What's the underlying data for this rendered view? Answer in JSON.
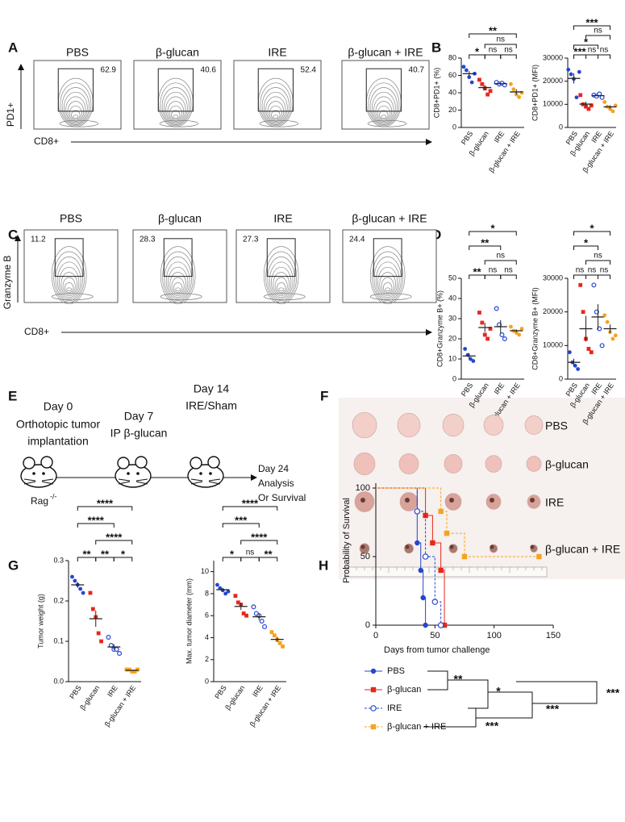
{
  "panel_labels": [
    "A",
    "B",
    "C",
    "D",
    "E",
    "F",
    "G",
    "H"
  ],
  "flow_A": {
    "groups": [
      "PBS",
      "β-glucan",
      "IRE",
      "β-glucan + IRE"
    ],
    "gate_values": [
      62.9,
      40.6,
      52.4,
      40.7
    ],
    "y_label": "PD1+",
    "x_label": "CD8+"
  },
  "flow_C": {
    "groups": [
      "PBS",
      "β-glucan",
      "IRE",
      "β-glucan + IRE"
    ],
    "gate_values": [
      11.2,
      28.3,
      27.3,
      24.4
    ],
    "y_label": "Granzyme B",
    "x_label": "CD8+"
  },
  "dot_B1": {
    "type": "dot",
    "y_label": "CD8+PD1+ (%)",
    "ylim": [
      0,
      80
    ],
    "yticks": [
      0,
      20,
      40,
      60,
      80
    ],
    "groups": [
      {
        "name": "PBS",
        "color": "#2546d0",
        "marker": "circle",
        "values": [
          70,
          66,
          58,
          52,
          62
        ],
        "mean": 62,
        "sem": 3
      },
      {
        "name": "β-glucan",
        "color": "#e8261c",
        "marker": "square",
        "values": [
          55,
          50,
          45,
          38,
          42
        ],
        "mean": 46,
        "sem": 3
      },
      {
        "name": "IRE",
        "color": "#2546d0",
        "marker": "open-circle",
        "values": [
          52,
          50,
          51,
          49
        ],
        "mean": 50.5,
        "sem": 1
      },
      {
        "name": "β-glucan + IRE",
        "color": "#f5a31e",
        "marker": "circle",
        "values": [
          50,
          44,
          38,
          35,
          40
        ],
        "mean": 41,
        "sem": 3
      }
    ],
    "brackets": [
      {
        "from": "PBS",
        "to": "β-glucan + IRE",
        "label": "**"
      },
      {
        "from": "β-glucan",
        "to": "β-glucan + IRE",
        "label": "ns"
      },
      {
        "from": "IRE",
        "to": "β-glucan + IRE",
        "label": "ns"
      },
      {
        "from": "PBS",
        "to": "β-glucan",
        "label": "*"
      },
      {
        "from": "β-glucan",
        "to": "IRE",
        "label": "ns"
      }
    ]
  },
  "dot_B2": {
    "type": "dot",
    "y_label": "CD8+PD1+ (MFI)",
    "ylim": [
      0,
      30000
    ],
    "yticks": [
      0,
      10000,
      20000,
      30000
    ],
    "groups": [
      {
        "name": "PBS",
        "color": "#2546d0",
        "marker": "circle",
        "values": [
          25000,
          23000,
          21000,
          13000,
          24000
        ],
        "mean": 21200,
        "sem": 2200
      },
      {
        "name": "β-glucan",
        "color": "#e8261c",
        "marker": "square",
        "values": [
          14000,
          10000,
          9000,
          8000,
          9500
        ],
        "mean": 10100,
        "sem": 1000
      },
      {
        "name": "IRE",
        "color": "#2546d0",
        "marker": "open-circle",
        "values": [
          14000,
          13500,
          14500,
          13000
        ],
        "mean": 13750,
        "sem": 300
      },
      {
        "name": "β-glucan + IRE",
        "color": "#f5a31e",
        "marker": "circle",
        "values": [
          11000,
          9000,
          8000,
          7000,
          9500
        ],
        "mean": 8900,
        "sem": 700
      }
    ],
    "brackets": [
      {
        "from": "PBS",
        "to": "β-glucan + IRE",
        "label": "***"
      },
      {
        "from": "PBS",
        "to": "IRE",
        "label": "*"
      },
      {
        "from": "β-glucan",
        "to": "IRE",
        "label": "ns"
      },
      {
        "from": "PBS",
        "to": "β-glucan",
        "label": "***"
      },
      {
        "from": "IRE",
        "to": "β-glucan + IRE",
        "label": "ns"
      },
      {
        "from": "β-glucan",
        "to": "β-glucan + IRE",
        "label": "ns"
      }
    ]
  },
  "dot_D1": {
    "type": "dot",
    "y_label": "CD8+Granzyme B+ (%)",
    "ylim": [
      0,
      50
    ],
    "yticks": [
      0,
      10,
      20,
      30,
      40,
      50
    ],
    "groups": [
      {
        "name": "PBS",
        "color": "#2546d0",
        "marker": "circle",
        "values": [
          15,
          12,
          10,
          9
        ],
        "mean": 11.5,
        "sem": 1.3
      },
      {
        "name": "β-glucan",
        "color": "#e8261c",
        "marker": "square",
        "values": [
          33,
          28,
          22,
          20,
          25
        ],
        "mean": 25.6,
        "sem": 2.3
      },
      {
        "name": "IRE",
        "color": "#2546d0",
        "marker": "open-circle",
        "values": [
          35,
          27,
          22,
          20
        ],
        "mean": 26,
        "sem": 3.3
      },
      {
        "name": "β-glucan + IRE",
        "color": "#f5a31e",
        "marker": "circle",
        "values": [
          26,
          24,
          23,
          22,
          25
        ],
        "mean": 24,
        "sem": 0.7
      }
    ],
    "brackets": [
      {
        "from": "PBS",
        "to": "β-glucan + IRE",
        "label": "*"
      },
      {
        "from": "β-glucan",
        "to": "β-glucan + IRE",
        "label": "ns"
      },
      {
        "from": "PBS",
        "to": "IRE",
        "label": "**"
      },
      {
        "from": "β-glucan",
        "to": "IRE",
        "label": "ns"
      },
      {
        "from": "PBS",
        "to": "β-glucan",
        "label": "**"
      },
      {
        "from": "IRE",
        "to": "β-glucan + IRE",
        "label": "ns"
      }
    ]
  },
  "dot_D2": {
    "type": "dot",
    "y_label": "CD8+Granzyme B+ (MFI)",
    "ylim": [
      0,
      30000
    ],
    "yticks": [
      0,
      10000,
      20000,
      30000
    ],
    "groups": [
      {
        "name": "PBS",
        "color": "#2546d0",
        "marker": "circle",
        "values": [
          8000,
          5000,
          4000,
          3000
        ],
        "mean": 5000,
        "sem": 1100
      },
      {
        "name": "β-glucan",
        "color": "#e8261c",
        "marker": "square",
        "values": [
          28000,
          20000,
          12000,
          9000,
          8000
        ],
        "mean": 15000,
        "sem": 3800
      },
      {
        "name": "IRE",
        "color": "#2546d0",
        "marker": "open-circle",
        "values": [
          28000,
          20000,
          15000,
          10000
        ],
        "mean": 18500,
        "sem": 3800
      },
      {
        "name": "β-glucan + IRE",
        "color": "#f5a31e",
        "marker": "circle",
        "values": [
          19000,
          17000,
          14000,
          12000,
          13000
        ],
        "mean": 15000,
        "sem": 1300
      }
    ],
    "brackets": [
      {
        "from": "PBS",
        "to": "β-glucan + IRE",
        "label": "*"
      },
      {
        "from": "β-glucan",
        "to": "β-glucan + IRE",
        "label": "ns"
      },
      {
        "from": "PBS",
        "to": "IRE",
        "label": "*"
      },
      {
        "from": "PBS",
        "to": "β-glucan",
        "label": "ns"
      },
      {
        "from": "β-glucan",
        "to": "IRE",
        "label": "ns"
      },
      {
        "from": "IRE",
        "to": "β-glucan + IRE",
        "label": "ns"
      }
    ]
  },
  "schematic_E": {
    "day0": "Day 0",
    "day0_line1": "Orthotopic tumor",
    "day0_line2": "implantation",
    "mouse": "Rag",
    "mouse_sup": "-/-",
    "day7": "Day 7",
    "day7_text": "IP β-glucan",
    "day14": "Day 14",
    "day14_text": "IRE/Sham",
    "day24": "Day 24",
    "day24_line1": "Analysis",
    "day24_line2": "Or Survival"
  },
  "photo_F": {
    "row_labels": [
      "PBS",
      "β-glucan",
      "IRE",
      "β-glucan + IRE"
    ]
  },
  "dot_G1": {
    "type": "dot",
    "y_label": "Tumor weight (g)",
    "ylim": [
      0,
      0.3
    ],
    "yticks": [
      {
        "value": 0,
        "label": "0.0"
      },
      0.1,
      0.2,
      0.3
    ],
    "groups": [
      {
        "name": "PBS",
        "color": "#2546d0",
        "marker": "circle",
        "values": [
          0.26,
          0.25,
          0.24,
          0.23,
          0.22
        ],
        "mean": 0.24,
        "sem": 0.007
      },
      {
        "name": "β-glucan",
        "color": "#e8261c",
        "marker": "square",
        "values": [
          0.22,
          0.18,
          0.16,
          0.12,
          0.1
        ],
        "mean": 0.156,
        "sem": 0.02
      },
      {
        "name": "IRE",
        "color": "#2546d0",
        "marker": "open-circle",
        "values": [
          0.11,
          0.09,
          0.08,
          0.08,
          0.07
        ],
        "mean": 0.086,
        "sem": 0.007
      },
      {
        "name": "β-glucan + IRE",
        "color": "#f5a31e",
        "marker": "square",
        "values": [
          0.03,
          0.03,
          0.025,
          0.025,
          0.03
        ],
        "mean": 0.028,
        "sem": 0.001
      }
    ],
    "brackets": [
      {
        "from": "PBS",
        "to": "β-glucan + IRE",
        "label": "****"
      },
      {
        "from": "β-glucan",
        "to": "β-glucan + IRE",
        "label": "****"
      },
      {
        "from": "PBS",
        "to": "IRE",
        "label": "****"
      },
      {
        "from": "β-glucan",
        "to": "IRE",
        "label": "**"
      },
      {
        "from": "PBS",
        "to": "β-glucan",
        "label": "**"
      },
      {
        "from": "IRE",
        "to": "β-glucan + IRE",
        "label": "*"
      }
    ]
  },
  "dot_G2": {
    "type": "dot",
    "y_label": "Max. tumor diameter (mm)",
    "ylim": [
      0,
      11
    ],
    "yticks": [
      0,
      2,
      4,
      6,
      8,
      10
    ],
    "groups": [
      {
        "name": "PBS",
        "color": "#2546d0",
        "marker": "circle",
        "values": [
          8.8,
          8.5,
          8.3,
          8.0,
          8.2
        ],
        "mean": 8.36,
        "sem": 0.14
      },
      {
        "name": "β-glucan",
        "color": "#e8261c",
        "marker": "square",
        "values": [
          7.8,
          7.2,
          7.0,
          6.2,
          6.0
        ],
        "mean": 6.84,
        "sem": 0.33
      },
      {
        "name": "IRE",
        "color": "#2546d0",
        "marker": "open-circle",
        "values": [
          6.8,
          6.2,
          6.0,
          5.5,
          5.0
        ],
        "mean": 5.9,
        "sem": 0.3
      },
      {
        "name": "β-glucan + IRE",
        "color": "#f5a31e",
        "marker": "square",
        "values": [
          4.5,
          4.2,
          3.8,
          3.5,
          3.2
        ],
        "mean": 3.84,
        "sem": 0.23
      }
    ],
    "brackets": [
      {
        "from": "PBS",
        "to": "β-glucan + IRE",
        "label": "****"
      },
      {
        "from": "β-glucan",
        "to": "β-glucan + IRE",
        "label": "****"
      },
      {
        "from": "PBS",
        "to": "IRE",
        "label": "***"
      },
      {
        "from": "β-glucan",
        "to": "IRE",
        "label": "ns"
      },
      {
        "from": "PBS",
        "to": "β-glucan",
        "label": "*"
      },
      {
        "from": "IRE",
        "to": "β-glucan + IRE",
        "label": "**"
      }
    ]
  },
  "survival_H": {
    "type": "survival",
    "x_label": "Days from tumor challenge",
    "y_label": "Probability of Survival",
    "xlim": [
      0,
      150
    ],
    "ylim": [
      0,
      100
    ],
    "xticks": [
      0,
      50,
      100,
      150
    ],
    "yticks": [
      0,
      50,
      100
    ],
    "series": [
      {
        "name": "PBS",
        "color": "#2546d0",
        "marker": "circle",
        "dashed": false,
        "x": [
          0,
          35,
          38,
          40,
          42
        ],
        "y": [
          100,
          60,
          40,
          20,
          0
        ]
      },
      {
        "name": "β-glucan",
        "color": "#e8261c",
        "marker": "square",
        "dashed": false,
        "x": [
          0,
          42,
          48,
          55,
          58
        ],
        "y": [
          100,
          80,
          60,
          40,
          0
        ]
      },
      {
        "name": "IRE",
        "color": "#2546d0",
        "marker": "open-circle",
        "dashed": true,
        "x": [
          0,
          35,
          42,
          50,
          55
        ],
        "y": [
          100,
          83,
          50,
          17,
          0
        ]
      },
      {
        "name": "β-glucan + IRE",
        "color": "#f5a31e",
        "marker": "square",
        "dashed": true,
        "x": [
          0,
          55,
          60,
          75,
          138
        ],
        "y": [
          100,
          83,
          67,
          50,
          50
        ]
      }
    ],
    "comparisons": [
      "**",
      "*",
      "***",
      "***",
      "***"
    ]
  }
}
